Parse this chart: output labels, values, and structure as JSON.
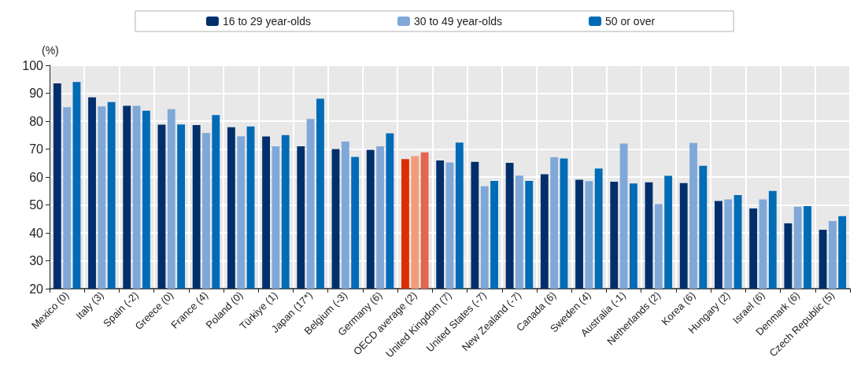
{
  "chart_data": {
    "type": "bar",
    "ylabel": "(%)",
    "categories": [
      "Mexico (0)",
      "Italy (3)",
      "Spain (-2)",
      "Greece (0)",
      "France (4)",
      "Poland (0)",
      "Türkiye (1)",
      "Japan (17*)",
      "Belgium (-3)",
      "Germany (6)",
      "OECD average (2)",
      "United Kingdom (7)",
      "United States (-7)",
      "New Zealand (-7)",
      "Canada (6)",
      "Sweden (4)",
      "Australia (-1)",
      "Netherlands (2)",
      "Korea (6)",
      "Hungary (2)",
      "Israel (6)",
      "Denmark (6)",
      "Czech Republic (5)"
    ],
    "series": [
      {
        "name": "16 to 29 year-olds",
        "color": "#002f6c",
        "colors": [
          "#002f6c",
          "#002f6c",
          "#002f6c",
          "#002f6c",
          "#002f6c",
          "#002f6c",
          "#002f6c",
          "#002f6c",
          "#002f6c",
          "#002f6c",
          "#dc2e00",
          "#002f6c",
          "#002f6c",
          "#002f6c",
          "#002f6c",
          "#002f6c",
          "#002f6c",
          "#002f6c",
          "#002f6c",
          "#002f6c",
          "#002f6c",
          "#002f6c",
          "#002f6c"
        ],
        "values": [
          93.5,
          88.5,
          85.5,
          78.7,
          78.6,
          77.8,
          74.5,
          71,
          70,
          69.7,
          66.4,
          65.9,
          65.4,
          65.1,
          61,
          59,
          58.3,
          58.1,
          57.8,
          51.4,
          48.7,
          43.4,
          41.1
        ]
      },
      {
        "name": "30 to 49 year-olds",
        "color": "#7fa8d9",
        "colors": [
          "#7fa8d9",
          "#7fa8d9",
          "#7fa8d9",
          "#7fa8d9",
          "#7fa8d9",
          "#7fa8d9",
          "#7fa8d9",
          "#7fa8d9",
          "#7fa8d9",
          "#7fa8d9",
          "#f59a7a",
          "#7fa8d9",
          "#7fa8d9",
          "#7fa8d9",
          "#7fa8d9",
          "#7fa8d9",
          "#7fa8d9",
          "#7fa8d9",
          "#7fa8d9",
          "#7fa8d9",
          "#7fa8d9",
          "#7fa8d9",
          "#7fa8d9"
        ],
        "values": [
          85,
          85.3,
          85.5,
          84.3,
          75.8,
          74.6,
          71,
          80.8,
          72.7,
          71,
          67.5,
          65.2,
          56.7,
          60.5,
          67.1,
          58.5,
          72,
          50.3,
          72.2,
          52,
          52,
          49.4,
          44.2
        ]
      },
      {
        "name": "50 or over",
        "color": "#006bb6",
        "colors": [
          "#006bb6",
          "#006bb6",
          "#006bb6",
          "#006bb6",
          "#006bb6",
          "#006bb6",
          "#006bb6",
          "#006bb6",
          "#006bb6",
          "#006bb6",
          "#e5654d",
          "#006bb6",
          "#006bb6",
          "#006bb6",
          "#006bb6",
          "#006bb6",
          "#006bb6",
          "#006bb6",
          "#006bb6",
          "#006bb6",
          "#006bb6",
          "#006bb6",
          "#006bb6"
        ],
        "values": [
          94,
          86.8,
          83.7,
          78.8,
          82.2,
          78.1,
          75,
          88,
          67.2,
          75.6,
          68.8,
          72.3,
          58.6,
          58.6,
          66.6,
          63,
          57.7,
          60.4,
          64,
          53.5,
          55,
          49.6,
          46
        ]
      }
    ],
    "ylim": [
      20,
      100
    ],
    "yticks": [
      20,
      30,
      40,
      50,
      60,
      70,
      80,
      90,
      100
    ],
    "grid": true,
    "legend": "top"
  }
}
